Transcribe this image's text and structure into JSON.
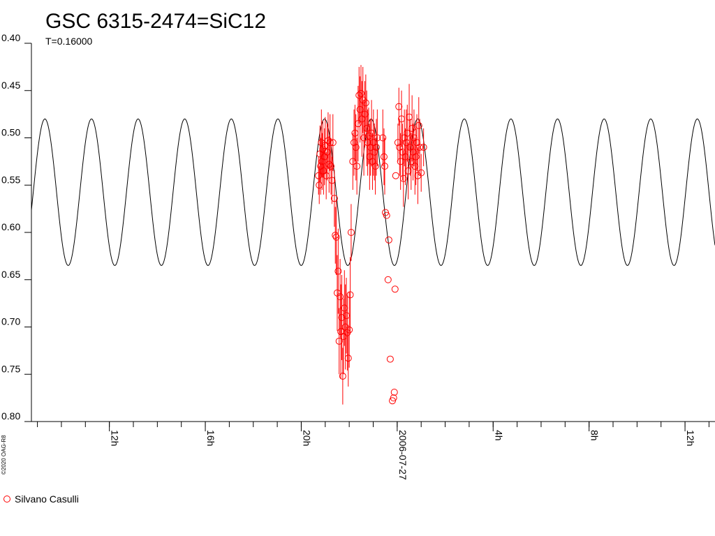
{
  "chart_data": {
    "type": "scatter",
    "title": "GSC 6315-2474=SiC12",
    "subtitle": "T=0.16000",
    "copyright": "©2020 OAG-R8",
    "xlim": [
      -15.25,
      13.25
    ],
    "xticks": [
      {
        "value": -12,
        "label": "12h"
      },
      {
        "value": -8,
        "label": "16h"
      },
      {
        "value": -4,
        "label": "20h"
      },
      {
        "value": 0,
        "label": "2006-07-27"
      },
      {
        "value": 4,
        "label": "4h"
      },
      {
        "value": 8,
        "label": "8h"
      },
      {
        "value": 12,
        "label": "12h"
      }
    ],
    "xminorticks": [
      -15,
      -14,
      -13,
      -12,
      -11,
      -10,
      -9,
      -8,
      -7,
      -6,
      -5,
      -4,
      -3,
      -2,
      -1,
      0,
      1,
      2,
      3,
      4,
      5,
      6,
      7,
      8,
      9,
      10,
      11,
      12,
      13
    ],
    "ylim": [
      0.4,
      0.8
    ],
    "y_inverted": true,
    "yticks": [
      {
        "value": 0.4,
        "label": "0.40"
      },
      0.45,
      {
        "value": 0.5,
        "label": "0.50"
      },
      0.55,
      {
        "value": 0.6,
        "label": "0.60"
      },
      0.65,
      {
        "value": 0.7,
        "label": "0.70"
      },
      0.75,
      {
        "value": 0.8,
        "label": "0.80"
      }
    ],
    "curve": {
      "period": 1.943,
      "peak_x": -3.03,
      "min": 0.48,
      "max": 0.635,
      "color": "#000000"
    },
    "series": [
      {
        "name": "Silvano Casulli",
        "color": "#ff0000",
        "x": [
          -3.28,
          -3.25,
          -3.22,
          -3.19,
          -3.16,
          -3.13,
          -3.1,
          -3.07,
          -3.03,
          -3.0,
          -2.96,
          -2.92,
          -2.88,
          -2.84,
          -2.8,
          -2.76,
          -2.72,
          -2.68,
          -2.62,
          -2.58,
          -2.54,
          -2.5,
          -2.46,
          -2.42,
          -2.38,
          -2.35,
          -2.31,
          -2.27,
          -2.24,
          -2.2,
          -2.16,
          -2.12,
          -2.08,
          -2.04,
          -2.0,
          -1.96,
          -1.92,
          -1.85,
          -1.8,
          -1.76,
          -1.72,
          -1.68,
          -1.63,
          -1.59,
          -1.55,
          -1.51,
          -1.47,
          -1.43,
          -1.39,
          -1.35,
          -1.31,
          -1.27,
          -1.23,
          -1.19,
          -1.15,
          -1.11,
          -1.07,
          -1.03,
          -0.99,
          -0.95,
          -0.91,
          -0.87,
          -0.83,
          -0.6,
          -0.55,
          -0.52,
          -0.49,
          -0.44,
          -0.35,
          -0.38,
          -0.29,
          -0.2,
          -0.15,
          -0.12,
          -0.09,
          -0.06,
          0.03,
          0.07,
          0.1,
          0.14,
          0.18,
          0.22,
          0.26,
          0.3,
          0.34,
          0.38,
          0.42,
          0.46,
          0.5,
          0.54,
          0.58,
          0.62,
          0.66,
          0.7,
          0.74,
          0.78,
          0.82,
          0.86,
          0.9,
          0.94,
          1.0,
          1.1
        ],
        "values": [
          0.54,
          0.55,
          0.517,
          0.53,
          0.505,
          0.525,
          0.512,
          0.535,
          0.52,
          0.508,
          0.54,
          0.515,
          0.503,
          0.528,
          0.505,
          0.53,
          0.545,
          0.505,
          0.564,
          0.603,
          0.605,
          0.664,
          0.641,
          0.715,
          0.668,
          0.705,
          0.69,
          0.752,
          0.71,
          0.68,
          0.7,
          0.688,
          0.706,
          0.733,
          0.703,
          0.666,
          0.6,
          0.525,
          0.505,
          0.495,
          0.51,
          0.53,
          0.485,
          0.455,
          0.47,
          0.453,
          0.48,
          0.46,
          0.5,
          0.475,
          0.463,
          0.49,
          0.505,
          0.498,
          0.52,
          0.51,
          0.495,
          0.525,
          0.505,
          0.515,
          0.53,
          0.51,
          0.5,
          0.5,
          0.52,
          0.53,
          0.579,
          0.582,
          0.608,
          0.65,
          0.734,
          0.778,
          0.775,
          0.769,
          0.66,
          0.54,
          0.505,
          0.467,
          0.51,
          0.525,
          0.48,
          0.515,
          0.543,
          0.5,
          0.52,
          0.505,
          0.495,
          0.535,
          0.478,
          0.51,
          0.525,
          0.49,
          0.515,
          0.5,
          0.53,
          0.52,
          0.505,
          0.54,
          0.487,
          0.51,
          0.537,
          0.51
        ],
        "errors": [
          0.02,
          0.02,
          0.03,
          0.03,
          0.035,
          0.03,
          0.03,
          0.025,
          0.03,
          0.03,
          0.025,
          0.03,
          0.03,
          0.03,
          0.03,
          0.03,
          0.025,
          0.03,
          0.03,
          0.03,
          0.04,
          0.04,
          0.045,
          0.035,
          0.04,
          0.05,
          0.045,
          0.03,
          0.04,
          0.04,
          0.045,
          0.04,
          0.04,
          0.03,
          0.04,
          0.04,
          0.03,
          0.03,
          0.035,
          0.03,
          0.035,
          0.03,
          0.04,
          0.03,
          0.035,
          0.03,
          0.04,
          0.035,
          0.04,
          0.035,
          0.03,
          0.04,
          0.035,
          0.03,
          0.035,
          0.03,
          0.035,
          0.03,
          0.035,
          0.03,
          0.03,
          0.03,
          0.03,
          0.03,
          0.03,
          0.03,
          0,
          0,
          0,
          0,
          0,
          0,
          0,
          0,
          0,
          0,
          0.02,
          0.02,
          0.03,
          0.03,
          0.03,
          0.03,
          0.03,
          0.03,
          0.03,
          0.035,
          0.03,
          0.03,
          0.035,
          0.03,
          0.03,
          0.035,
          0.03,
          0.03,
          0.03,
          0.03,
          0.03,
          0.03,
          0.03,
          0.03,
          0.02,
          0.02
        ]
      }
    ]
  }
}
